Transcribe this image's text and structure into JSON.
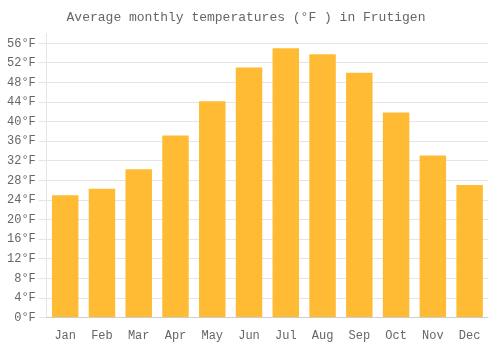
{
  "chart_data": {
    "type": "bar",
    "title": "Average monthly temperatures (°F ) in Frutigen",
    "categories": [
      "Jan",
      "Feb",
      "Mar",
      "Apr",
      "May",
      "Jun",
      "Jul",
      "Aug",
      "Sep",
      "Oct",
      "Nov",
      "Dec"
    ],
    "values": [
      25.0,
      26.3,
      30.3,
      37.2,
      44.2,
      51.1,
      55.0,
      53.8,
      50.0,
      41.9,
      33.1,
      27.1
    ],
    "color": "#FFBB33",
    "ylim": [
      0,
      58
    ],
    "yticks": [
      {
        "value": 0,
        "label": "0°F"
      },
      {
        "value": 4,
        "label": "4°F"
      },
      {
        "value": 8,
        "label": "8°F"
      },
      {
        "value": 12,
        "label": "12°F"
      },
      {
        "value": 16,
        "label": "16°F"
      },
      {
        "value": 20,
        "label": "20°F"
      },
      {
        "value": 24,
        "label": "24°F"
      },
      {
        "value": 28,
        "label": "28°F"
      },
      {
        "value": 32,
        "label": "32°F"
      },
      {
        "value": 36,
        "label": "36°F"
      },
      {
        "value": 40,
        "label": "40°F"
      },
      {
        "value": 44,
        "label": "44°F"
      },
      {
        "value": 48,
        "label": "48°F"
      },
      {
        "value": 52,
        "label": "52°F"
      },
      {
        "value": 56,
        "label": "56°F"
      }
    ],
    "grid": true
  }
}
